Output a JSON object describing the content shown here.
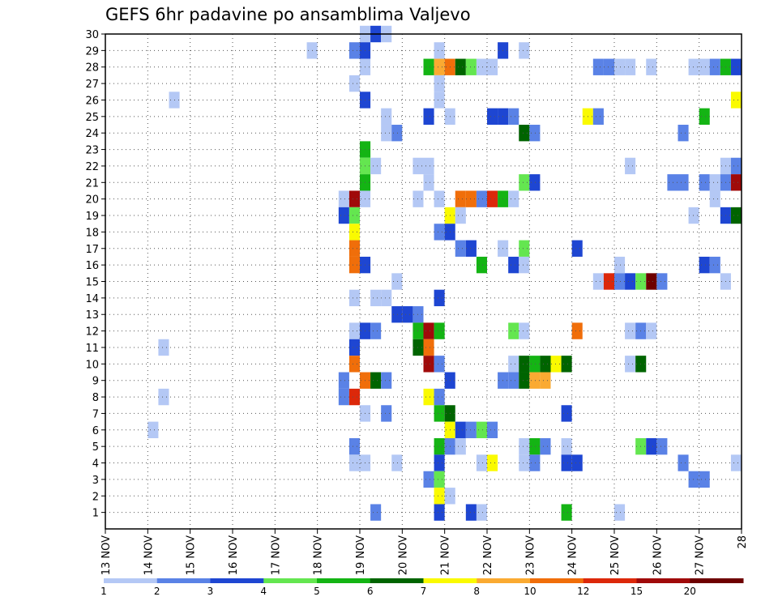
{
  "chart_data": {
    "type": "heatmap",
    "title": "GEFS 6hr padavine po ansamblima Valjevo",
    "x_tick_labels": [
      "13 NOV",
      "14 NOV",
      "15 NOV",
      "16 NOV",
      "17 NOV",
      "18 NOV",
      "19 NOV",
      "20 NOV",
      "21 NOV",
      "22 NOV",
      "23 NOV",
      "24 NOV",
      "25 NOV",
      "26 NOV",
      "27 NOV",
      "28"
    ],
    "x_range_days": [
      13,
      28
    ],
    "y_ticks": [
      1,
      2,
      3,
      4,
      5,
      6,
      7,
      8,
      9,
      10,
      11,
      12,
      13,
      14,
      15,
      16,
      17,
      18,
      19,
      20,
      21,
      22,
      23,
      24,
      25,
      26,
      27,
      28,
      29,
      30
    ],
    "y_range": [
      0,
      30
    ],
    "grid": true,
    "colorbar": {
      "labels": [
        "1",
        "2",
        "3",
        "4",
        "5",
        "6",
        "7",
        "8",
        "10",
        "12",
        "15",
        "20"
      ],
      "colors": [
        "#b4c8f5",
        "#5a82e6",
        "#1e46d2",
        "#64e650",
        "#14b414",
        "#006400",
        "#fafa00",
        "#faaa32",
        "#f06e0a",
        "#dc280a",
        "#a00a0a",
        "#6e0000"
      ]
    },
    "cell_days": 0.25,
    "cells": [
      [
        19.0,
        30,
        1
      ],
      [
        19.25,
        30,
        3
      ],
      [
        19.5,
        30,
        1
      ],
      [
        17.75,
        29,
        1
      ],
      [
        18.75,
        29,
        2
      ],
      [
        19.0,
        29,
        3
      ],
      [
        20.75,
        29,
        1
      ],
      [
        22.25,
        29,
        3
      ],
      [
        22.75,
        29,
        1
      ],
      [
        19.0,
        28,
        1
      ],
      [
        20.5,
        28,
        5
      ],
      [
        20.75,
        28,
        8
      ],
      [
        21.0,
        28,
        9
      ],
      [
        21.25,
        28,
        6
      ],
      [
        21.5,
        28,
        4
      ],
      [
        21.75,
        28,
        1
      ],
      [
        22.0,
        28,
        1
      ],
      [
        24.5,
        28,
        2
      ],
      [
        24.75,
        28,
        2
      ],
      [
        25.0,
        28,
        1
      ],
      [
        25.25,
        28,
        1
      ],
      [
        25.75,
        28,
        1
      ],
      [
        26.75,
        28,
        1
      ],
      [
        27.0,
        28,
        1
      ],
      [
        27.25,
        28,
        2
      ],
      [
        27.5,
        28,
        5
      ],
      [
        27.75,
        28,
        3
      ],
      [
        18.75,
        27,
        1
      ],
      [
        20.75,
        27,
        1
      ],
      [
        14.5,
        26,
        1
      ],
      [
        19.0,
        26,
        3
      ],
      [
        20.75,
        26,
        1
      ],
      [
        27.75,
        26,
        7
      ],
      [
        19.5,
        25,
        1
      ],
      [
        20.5,
        25,
        3
      ],
      [
        21.0,
        25,
        1
      ],
      [
        22.0,
        25,
        3
      ],
      [
        22.25,
        25,
        3
      ],
      [
        22.5,
        25,
        2
      ],
      [
        24.25,
        25,
        7
      ],
      [
        24.5,
        25,
        2
      ],
      [
        27.0,
        25,
        5
      ],
      [
        19.5,
        24,
        1
      ],
      [
        19.75,
        24,
        2
      ],
      [
        22.75,
        24,
        6
      ],
      [
        23.0,
        24,
        2
      ],
      [
        26.5,
        24,
        2
      ],
      [
        19.0,
        23,
        5
      ],
      [
        19.0,
        22,
        4
      ],
      [
        19.25,
        22,
        1
      ],
      [
        20.25,
        22,
        1
      ],
      [
        20.5,
        22,
        1
      ],
      [
        25.25,
        22,
        1
      ],
      [
        27.5,
        22,
        1
      ],
      [
        27.75,
        22,
        2
      ],
      [
        19.0,
        21,
        5
      ],
      [
        20.5,
        21,
        1
      ],
      [
        22.75,
        21,
        4
      ],
      [
        23.0,
        21,
        3
      ],
      [
        26.25,
        21,
        2
      ],
      [
        26.5,
        21,
        2
      ],
      [
        27.0,
        21,
        2
      ],
      [
        27.25,
        21,
        1
      ],
      [
        27.5,
        21,
        2
      ],
      [
        27.75,
        21,
        11
      ],
      [
        18.5,
        20,
        1
      ],
      [
        18.75,
        20,
        11
      ],
      [
        19.0,
        20,
        1
      ],
      [
        20.25,
        20,
        1
      ],
      [
        20.75,
        20,
        1
      ],
      [
        21.25,
        20,
        9
      ],
      [
        21.5,
        20,
        9
      ],
      [
        21.75,
        20,
        2
      ],
      [
        22.0,
        20,
        10
      ],
      [
        22.25,
        20,
        5
      ],
      [
        22.5,
        20,
        1
      ],
      [
        27.25,
        20,
        1
      ],
      [
        18.5,
        19,
        3
      ],
      [
        18.75,
        19,
        4
      ],
      [
        21.0,
        19,
        7
      ],
      [
        21.25,
        19,
        1
      ],
      [
        26.75,
        19,
        1
      ],
      [
        27.5,
        19,
        3
      ],
      [
        27.75,
        19,
        6
      ],
      [
        18.75,
        18,
        7
      ],
      [
        20.75,
        18,
        2
      ],
      [
        21.0,
        18,
        3
      ],
      [
        18.75,
        17,
        9
      ],
      [
        21.25,
        17,
        2
      ],
      [
        21.5,
        17,
        3
      ],
      [
        22.25,
        17,
        1
      ],
      [
        22.75,
        17,
        4
      ],
      [
        24.0,
        17,
        3
      ],
      [
        18.75,
        16,
        9
      ],
      [
        19.0,
        16,
        3
      ],
      [
        21.75,
        16,
        5
      ],
      [
        22.5,
        16,
        3
      ],
      [
        22.75,
        16,
        1
      ],
      [
        25.0,
        16,
        1
      ],
      [
        27.0,
        16,
        3
      ],
      [
        27.25,
        16,
        2
      ],
      [
        19.75,
        15,
        1
      ],
      [
        24.5,
        15,
        1
      ],
      [
        24.75,
        15,
        10
      ],
      [
        25.0,
        15,
        2
      ],
      [
        25.25,
        15,
        3
      ],
      [
        25.5,
        15,
        4
      ],
      [
        25.75,
        15,
        12
      ],
      [
        26.0,
        15,
        2
      ],
      [
        27.5,
        15,
        1
      ],
      [
        18.75,
        14,
        1
      ],
      [
        19.25,
        14,
        1
      ],
      [
        19.5,
        14,
        1
      ],
      [
        20.75,
        14,
        3
      ],
      [
        19.75,
        13,
        3
      ],
      [
        20.0,
        13,
        3
      ],
      [
        20.25,
        13,
        2
      ],
      [
        24.0,
        12,
        9
      ],
      [
        25.25,
        12,
        1
      ],
      [
        25.5,
        12,
        2
      ],
      [
        25.75,
        12,
        1
      ],
      [
        18.75,
        12,
        1
      ],
      [
        19.0,
        12,
        3
      ],
      [
        19.25,
        12,
        2
      ],
      [
        20.25,
        12,
        5
      ],
      [
        20.5,
        12,
        11
      ],
      [
        20.75,
        12,
        5
      ],
      [
        22.5,
        12,
        4
      ],
      [
        22.75,
        12,
        1
      ],
      [
        14.25,
        11,
        1
      ],
      [
        18.75,
        11,
        3
      ],
      [
        20.25,
        11,
        6
      ],
      [
        20.5,
        11,
        9
      ],
      [
        18.75,
        10,
        9
      ],
      [
        20.5,
        10,
        11
      ],
      [
        20.75,
        10,
        2
      ],
      [
        22.5,
        10,
        1
      ],
      [
        22.75,
        10,
        6
      ],
      [
        23.0,
        10,
        5
      ],
      [
        23.25,
        10,
        6
      ],
      [
        23.5,
        10,
        7
      ],
      [
        23.75,
        10,
        6
      ],
      [
        25.25,
        10,
        1
      ],
      [
        25.5,
        10,
        6
      ],
      [
        18.5,
        9,
        2
      ],
      [
        19.0,
        9,
        9
      ],
      [
        19.25,
        9,
        6
      ],
      [
        19.5,
        9,
        2
      ],
      [
        21.0,
        9,
        3
      ],
      [
        22.25,
        9,
        2
      ],
      [
        22.5,
        9,
        2
      ],
      [
        22.75,
        9,
        6
      ],
      [
        23.0,
        9,
        8
      ],
      [
        23.25,
        9,
        8
      ],
      [
        14.25,
        8,
        1
      ],
      [
        18.5,
        8,
        2
      ],
      [
        18.75,
        8,
        10
      ],
      [
        20.5,
        8,
        7
      ],
      [
        20.75,
        8,
        2
      ],
      [
        19.0,
        7,
        1
      ],
      [
        19.5,
        7,
        2
      ],
      [
        20.75,
        7,
        5
      ],
      [
        21.0,
        7,
        6
      ],
      [
        23.75,
        7,
        3
      ],
      [
        14.0,
        6,
        1
      ],
      [
        21.0,
        6,
        7
      ],
      [
        21.25,
        6,
        3
      ],
      [
        21.5,
        6,
        2
      ],
      [
        21.75,
        6,
        4
      ],
      [
        22.0,
        6,
        2
      ],
      [
        18.75,
        5,
        2
      ],
      [
        20.75,
        5,
        5
      ],
      [
        21.0,
        5,
        2
      ],
      [
        21.25,
        5,
        1
      ],
      [
        22.75,
        5,
        1
      ],
      [
        23.0,
        5,
        5
      ],
      [
        23.25,
        5,
        2
      ],
      [
        23.75,
        5,
        1
      ],
      [
        25.5,
        5,
        4
      ],
      [
        25.75,
        5,
        3
      ],
      [
        26.0,
        5,
        2
      ],
      [
        18.75,
        4,
        1
      ],
      [
        19.0,
        4,
        1
      ],
      [
        19.75,
        4,
        1
      ],
      [
        20.75,
        4,
        3
      ],
      [
        21.75,
        4,
        1
      ],
      [
        22.0,
        4,
        7
      ],
      [
        22.75,
        4,
        1
      ],
      [
        23.0,
        4,
        2
      ],
      [
        23.75,
        4,
        3
      ],
      [
        24.0,
        4,
        3
      ],
      [
        26.5,
        4,
        2
      ],
      [
        27.75,
        4,
        1
      ],
      [
        20.5,
        3,
        2
      ],
      [
        20.75,
        3,
        4
      ],
      [
        26.75,
        3,
        2
      ],
      [
        27.0,
        3,
        2
      ],
      [
        20.75,
        2,
        7
      ],
      [
        21.0,
        2,
        1
      ],
      [
        19.25,
        1,
        2
      ],
      [
        20.75,
        1,
        3
      ],
      [
        21.5,
        1,
        3
      ],
      [
        21.75,
        1,
        1
      ],
      [
        23.75,
        1,
        5
      ],
      [
        25.0,
        1,
        1
      ]
    ]
  }
}
